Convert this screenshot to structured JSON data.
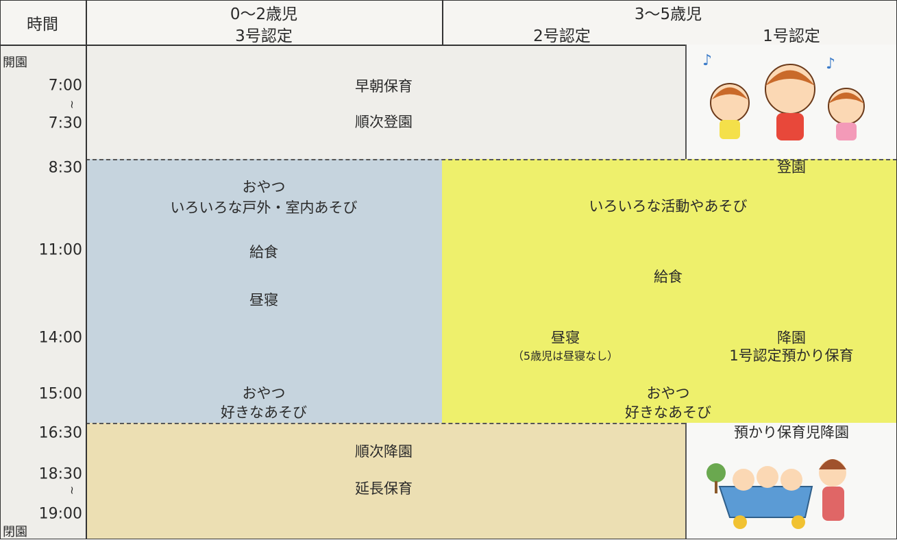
{
  "header": {
    "time": "時間",
    "infant": {
      "age": "0〜2歳児",
      "certification": "3号認定"
    },
    "preschool": {
      "age": "3〜5歳児",
      "certification_2": "2号認定",
      "certification_1": "1号認定"
    }
  },
  "time_labels": [
    "開園",
    "7:00",
    "≀",
    "7:30",
    "8:30",
    "11:00",
    "14:00",
    "15:00",
    "16:30",
    "18:30",
    "≀",
    "19:00",
    "閉園"
  ],
  "early": {
    "lines": [
      "早朝保育",
      "順次登園"
    ]
  },
  "infant_day": {
    "lines": [
      "おやつ",
      "いろいろな戸外・室内あそび",
      "給食",
      "昼寝",
      "おやつ",
      "好きなあそび"
    ]
  },
  "preschool_day": {
    "arrival": "登園",
    "activity": "いろいろな活動やあそび",
    "lunch": "給食",
    "nap": "昼寝",
    "nap_note": "（5歳児は昼寝なし）",
    "departure_1": "降園",
    "childcare_1": "1号認定預かり保育",
    "snack": "おやつ",
    "play": "好きなあそび"
  },
  "evening": {
    "lines": [
      "順次降園",
      "延長保育"
    ]
  },
  "pickup": "預かり保育児降園"
}
